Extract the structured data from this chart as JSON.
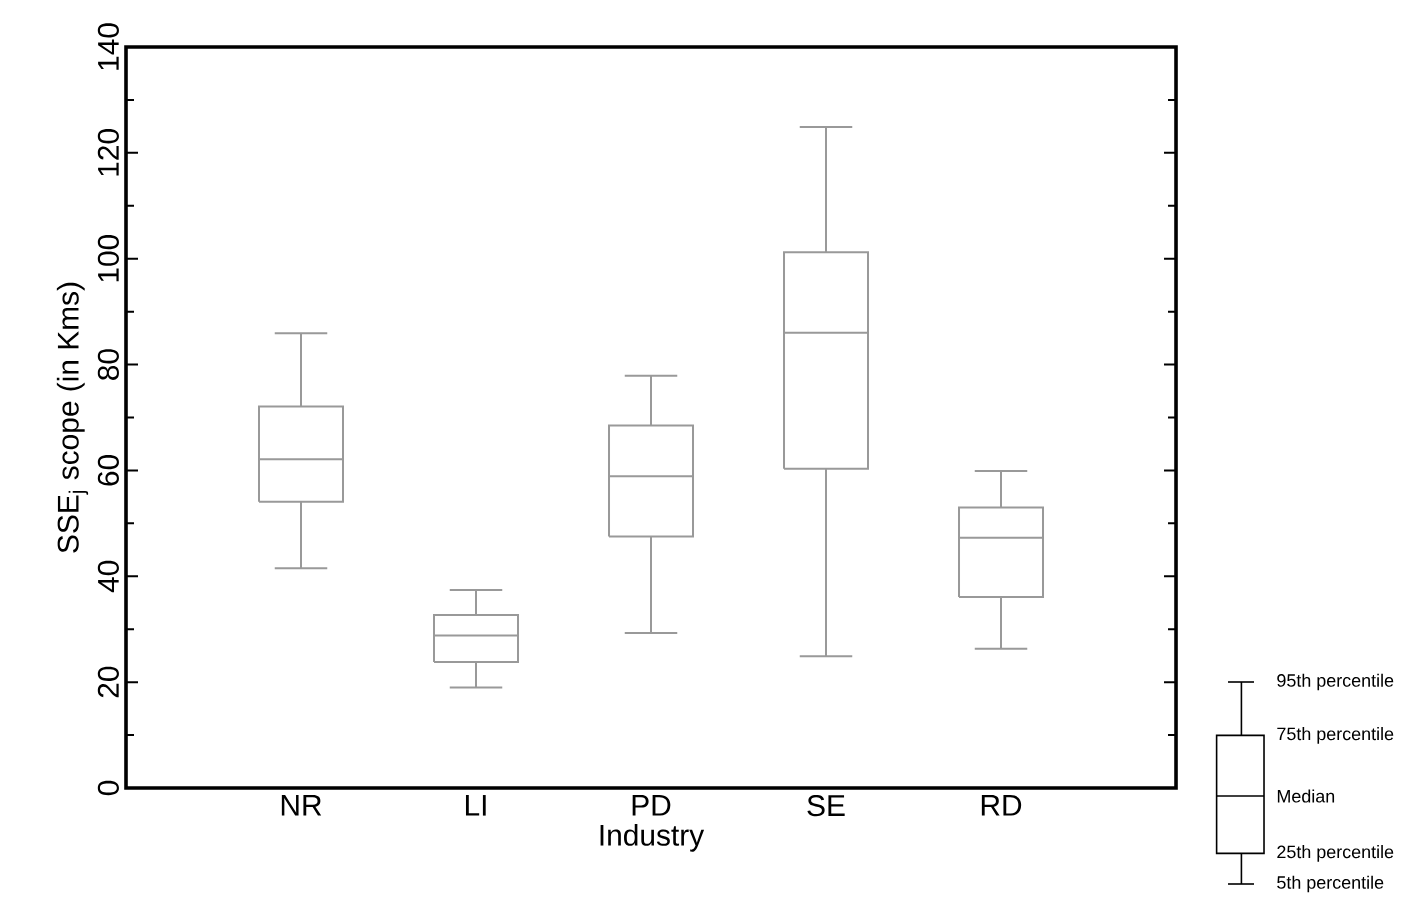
{
  "chart_data": {
    "type": "box",
    "xlabel": "Industry",
    "ylabel": "SSE$_{j}$ scope (in Kms)",
    "categories": [
      "NR",
      "LI",
      "PD",
      "SE",
      "RD"
    ],
    "color": "#999999",
    "boxes": [
      {
        "low": 41.5,
        "q1": 54.1,
        "median": 62.1,
        "q3": 72.1,
        "high": 85.9
      },
      {
        "low": 19.0,
        "q1": 23.8,
        "median": 28.8,
        "q3": 32.7,
        "high": 37.4
      },
      {
        "low": 29.3,
        "q1": 47.5,
        "median": 58.9,
        "q3": 68.5,
        "high": 77.9
      },
      {
        "low": 24.9,
        "q1": 60.3,
        "median": 86.0,
        "q3": 101.2,
        "high": 124.9
      },
      {
        "low": 26.3,
        "q1": 36.1,
        "median": 47.3,
        "q3": 53.0,
        "high": 59.9
      }
    ],
    "ylim": [
      0,
      140
    ],
    "yticks": [
      0,
      20,
      40,
      60,
      80,
      100,
      120,
      140
    ],
    "annotations": [
      "95th percentile",
      "75th percentile",
      "Median",
      "25th percentile",
      "5th percentile"
    ]
  }
}
